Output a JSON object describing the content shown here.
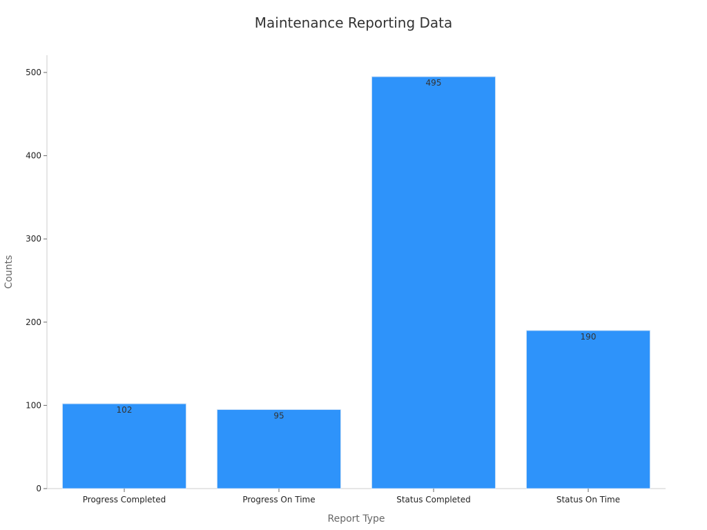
{
  "chart_data": {
    "type": "bar",
    "title": "Maintenance Reporting Data",
    "xlabel": "Report Type",
    "ylabel": "Counts",
    "categories": [
      "Progress Completed",
      "Progress On Time",
      "Status Completed",
      "Status On Time"
    ],
    "values": [
      102,
      95,
      495,
      190
    ],
    "ylim": [
      0,
      520
    ],
    "yticks": [
      0,
      100,
      200,
      300,
      400,
      500
    ],
    "grid": false,
    "bar_color": "#2e93fa",
    "bar_edge_color": "#d6e6f7"
  }
}
